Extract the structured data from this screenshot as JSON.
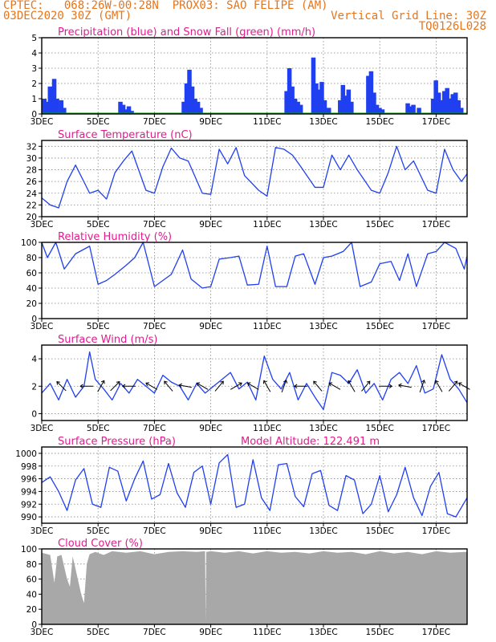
{
  "header": {
    "line1_left": "CPTEC:   068:26W-00:28N  PROX03: SAO FELIPE (AM)",
    "line2_left": "03DEC2020 30Z (GMT)",
    "line2_right": "Vertical Grid Line: 30Z",
    "line3_right": "TQ0126L028"
  },
  "x_axis": {
    "tick_labels": [
      "3DEC",
      "5DEC",
      "7DEC",
      "9DEC",
      "11DEC",
      "13DEC",
      "15DEC",
      "17DEC"
    ],
    "tick_days": [
      3,
      5,
      7,
      9,
      11,
      13,
      15,
      17
    ],
    "range_days": [
      3,
      18.1
    ],
    "extra_label": "2020"
  },
  "colors": {
    "blue": "#1f3ff0",
    "green": "#00a000",
    "gray": "#a8a8a8",
    "title": "#e21b8f",
    "header": "#e8751a",
    "grid": "#888888"
  },
  "chart_data": [
    {
      "type": "bar",
      "title": "Precipitation (blue) and Snow Fall (green) (mm/h)",
      "ylim": [
        0,
        5
      ],
      "yticks": [
        0,
        1,
        2,
        3,
        4,
        5
      ],
      "grid": true,
      "series": [
        {
          "name": "Precipitation",
          "color": "#1f3ff0",
          "x": [
            3.1,
            3.2,
            3.3,
            3.45,
            3.55,
            3.7,
            3.8,
            5.8,
            5.9,
            6.0,
            6.1,
            6.2,
            8.05,
            8.15,
            8.25,
            8.35,
            8.45,
            8.55,
            8.65,
            11.7,
            11.8,
            11.9,
            12.0,
            12.1,
            12.2,
            12.65,
            12.75,
            12.85,
            12.95,
            13.05,
            13.2,
            13.6,
            13.7,
            13.8,
            13.9,
            14.0,
            14.6,
            14.7,
            14.8,
            14.9,
            15.0,
            15.1,
            16.0,
            16.1,
            16.2,
            16.4,
            16.9,
            17.0,
            17.1,
            17.2,
            17.3,
            17.4,
            17.5,
            17.6,
            17.7,
            17.8,
            17.9
          ],
          "values": [
            1.0,
            0.8,
            1.8,
            2.3,
            1.0,
            0.9,
            0.4,
            0.8,
            0.6,
            0.3,
            0.5,
            0.2,
            0.8,
            2.0,
            2.9,
            1.8,
            1.0,
            0.8,
            0.4,
            1.5,
            3.0,
            1.8,
            1.0,
            0.8,
            0.6,
            3.7,
            2.0,
            1.6,
            2.1,
            0.9,
            0.4,
            0.9,
            1.9,
            1.2,
            1.6,
            0.8,
            2.5,
            2.8,
            1.4,
            0.6,
            0.4,
            0.3,
            0.7,
            0.5,
            0.6,
            0.4,
            1.0,
            2.2,
            1.4,
            0.9,
            1.5,
            1.7,
            1.0,
            1.3,
            1.4,
            0.9,
            0.4
          ]
        },
        {
          "name": "Snow Fall",
          "color": "#00a000",
          "x": [
            3,
            18.1
          ],
          "values": [
            0,
            0
          ]
        }
      ]
    },
    {
      "type": "line",
      "title": "Surface Temperature (nC)",
      "ylim": [
        20,
        33
      ],
      "yticks": [
        20,
        22,
        24,
        26,
        28,
        30,
        32
      ],
      "grid": true,
      "x": [
        3.0,
        3.3,
        3.6,
        3.9,
        4.2,
        4.7,
        5.0,
        5.3,
        5.6,
        5.9,
        6.2,
        6.7,
        7.0,
        7.3,
        7.6,
        7.9,
        8.2,
        8.7,
        9.0,
        9.3,
        9.6,
        9.9,
        10.2,
        10.7,
        11.0,
        11.3,
        11.6,
        11.9,
        12.2,
        12.7,
        13.0,
        13.3,
        13.6,
        13.9,
        14.2,
        14.7,
        15.0,
        15.3,
        15.6,
        15.9,
        16.2,
        16.7,
        17.0,
        17.3,
        17.6,
        17.9,
        18.1
      ],
      "series": [
        {
          "name": "Temperature",
          "values": [
            23.2,
            22.0,
            21.5,
            26.0,
            28.8,
            24.0,
            24.5,
            23.0,
            27.5,
            29.5,
            31.2,
            24.5,
            24.0,
            28.5,
            31.7,
            30.0,
            29.5,
            24.0,
            23.8,
            31.5,
            29.0,
            31.8,
            27.0,
            24.5,
            23.5,
            31.8,
            31.5,
            30.5,
            28.5,
            25.0,
            25.0,
            30.5,
            28.0,
            30.5,
            28.0,
            24.5,
            24.0,
            27.5,
            32.0,
            28.0,
            29.5,
            24.5,
            24.0,
            31.5,
            28.0,
            26.0,
            27.3
          ]
        }
      ]
    },
    {
      "type": "line",
      "title": "Relative Humidity (%)",
      "ylim": [
        0,
        100
      ],
      "yticks": [
        0,
        20,
        40,
        60,
        80,
        100
      ],
      "grid": true,
      "x": [
        3.0,
        3.2,
        3.5,
        3.8,
        4.2,
        4.7,
        5.0,
        5.3,
        5.6,
        6.0,
        6.3,
        6.6,
        7.0,
        7.3,
        7.6,
        8.0,
        8.3,
        8.7,
        9.0,
        9.3,
        9.7,
        10.0,
        10.3,
        10.7,
        11.0,
        11.3,
        11.7,
        12.0,
        12.3,
        12.7,
        13.0,
        13.3,
        13.7,
        14.0,
        14.3,
        14.7,
        15.0,
        15.4,
        15.7,
        16.0,
        16.3,
        16.7,
        17.0,
        17.3,
        17.7,
        18.0,
        18.1
      ],
      "series": [
        {
          "name": "Relative Humidity",
          "values": [
            100,
            80,
            100,
            65,
            85,
            95,
            45,
            50,
            58,
            70,
            80,
            100,
            42,
            50,
            58,
            90,
            52,
            40,
            42,
            78,
            80,
            82,
            44,
            45,
            95,
            42,
            42,
            82,
            85,
            45,
            80,
            82,
            88,
            100,
            42,
            48,
            72,
            75,
            50,
            85,
            42,
            85,
            88,
            100,
            92,
            65,
            82
          ]
        }
      ]
    },
    {
      "type": "line",
      "title": "Surface Wind (m/s)",
      "ylim": [
        -0.5,
        5
      ],
      "yticks": [
        0,
        2,
        4
      ],
      "grid": true,
      "x": [
        3.0,
        3.3,
        3.6,
        3.9,
        4.2,
        4.5,
        4.7,
        4.9,
        5.2,
        5.5,
        5.8,
        6.1,
        6.4,
        6.7,
        7.0,
        7.3,
        7.6,
        7.9,
        8.2,
        8.5,
        8.8,
        9.1,
        9.4,
        9.7,
        10.0,
        10.3,
        10.6,
        10.9,
        11.2,
        11.5,
        11.8,
        12.1,
        12.4,
        12.7,
        13.0,
        13.3,
        13.6,
        13.9,
        14.2,
        14.5,
        14.8,
        15.1,
        15.4,
        15.7,
        16.0,
        16.3,
        16.6,
        16.9,
        17.2,
        17.5,
        17.8,
        18.1
      ],
      "series": [
        {
          "name": "Wind Speed",
          "values": [
            1.5,
            2.2,
            1.0,
            2.5,
            1.2,
            2.0,
            4.5,
            2.5,
            1.8,
            1.0,
            2.2,
            1.5,
            2.5,
            2.0,
            1.5,
            2.8,
            2.3,
            2.0,
            1.0,
            2.2,
            1.5,
            2.0,
            2.5,
            3.0,
            1.8,
            2.3,
            1.0,
            4.2,
            2.5,
            1.8,
            3.0,
            1.0,
            2.2,
            1.2,
            0.3,
            3.0,
            2.8,
            2.2,
            3.2,
            1.5,
            2.2,
            1.0,
            2.5,
            3.0,
            2.2,
            3.5,
            1.5,
            1.8,
            4.3,
            2.5,
            1.8,
            0.8
          ]
        }
      ],
      "arrows": {
        "x": [
          3.7,
          4.6,
          5.1,
          5.6,
          6.1,
          6.9,
          7.5,
          8.1,
          8.7,
          9.3,
          9.9,
          10.5,
          11.0,
          11.6,
          12.2,
          12.8,
          13.4,
          14.0,
          14.5,
          15.2,
          15.9,
          16.5,
          17.1,
          17.6,
          18.0
        ],
        "direction_deg": [
          315,
          270,
          30,
          45,
          270,
          300,
          320,
          280,
          300,
          40,
          60,
          300,
          330,
          20,
          270,
          320,
          300,
          330,
          40,
          90,
          280,
          20,
          330,
          40,
          300
        ]
      }
    },
    {
      "type": "line",
      "title": "Surface Pressure (hPa)",
      "annotation": "Model Altitude: 122.491  m",
      "ylim": [
        989,
        1001
      ],
      "yticks": [
        990,
        992,
        994,
        996,
        998,
        1000
      ],
      "grid": true,
      "x": [
        3.0,
        3.3,
        3.6,
        3.9,
        4.2,
        4.5,
        4.8,
        5.1,
        5.4,
        5.7,
        6.0,
        6.3,
        6.6,
        6.9,
        7.2,
        7.5,
        7.8,
        8.1,
        8.4,
        8.7,
        9.0,
        9.3,
        9.6,
        9.9,
        10.2,
        10.5,
        10.8,
        11.1,
        11.4,
        11.7,
        12.0,
        12.3,
        12.6,
        12.9,
        13.2,
        13.5,
        13.8,
        14.1,
        14.4,
        14.7,
        15.0,
        15.3,
        15.6,
        15.9,
        16.2,
        16.5,
        16.8,
        17.1,
        17.4,
        17.7,
        18.1
      ],
      "series": [
        {
          "name": "Pressure",
          "values": [
            995.4,
            996.3,
            994.0,
            991.0,
            995.8,
            997.6,
            992.0,
            991.5,
            997.8,
            997.2,
            992.5,
            996.0,
            998.8,
            992.8,
            993.5,
            998.4,
            993.8,
            991.5,
            997.0,
            998.0,
            992.0,
            998.5,
            999.8,
            991.5,
            992.0,
            999.0,
            993.0,
            991.0,
            998.2,
            998.4,
            993.2,
            991.6,
            996.8,
            997.3,
            991.8,
            991.0,
            996.5,
            995.8,
            990.5,
            992.0,
            996.5,
            990.8,
            993.5,
            997.8,
            993.0,
            990.2,
            994.8,
            997.0,
            990.5,
            990.0,
            993.0
          ]
        }
      ]
    },
    {
      "type": "area",
      "title": "Cloud Cover (%)",
      "ylim": [
        0,
        100
      ],
      "yticks": [
        0,
        20,
        40,
        60,
        80,
        100
      ],
      "grid": true,
      "x": [
        3.0,
        3.3,
        3.45,
        3.55,
        3.7,
        3.9,
        4.0,
        4.1,
        4.4,
        4.5,
        4.6,
        4.7,
        4.9,
        5.2,
        5.5,
        6.0,
        6.5,
        7.0,
        7.5,
        8.0,
        8.5,
        8.8,
        8.82,
        8.84,
        9.0,
        9.5,
        10.0,
        10.5,
        11.0,
        11.5,
        12.0,
        12.5,
        13.0,
        13.5,
        14.0,
        14.5,
        15.0,
        15.5,
        16.0,
        16.5,
        17.0,
        17.5,
        18.0,
        18.1
      ],
      "series": [
        {
          "name": "Cloud Cover",
          "values": [
            95,
            92,
            55,
            90,
            92,
            60,
            50,
            90,
            40,
            28,
            80,
            93,
            96,
            92,
            97,
            95,
            97,
            93,
            96,
            97,
            96,
            97,
            4,
            96,
            97,
            95,
            97,
            94,
            97,
            95,
            96,
            94,
            97,
            95,
            96,
            93,
            97,
            94,
            96,
            93,
            97,
            95,
            96,
            96
          ]
        }
      ]
    }
  ]
}
